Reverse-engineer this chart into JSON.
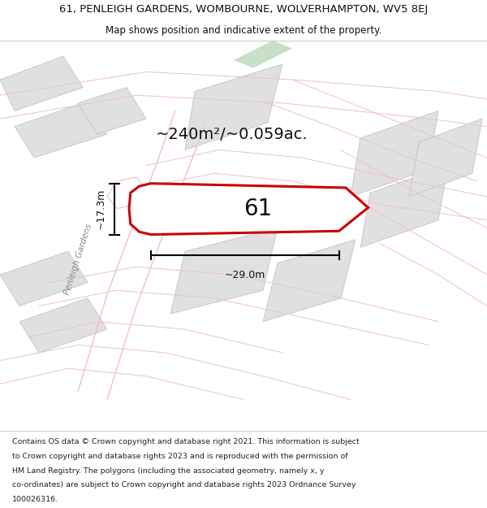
{
  "title_line1": "61, PENLEIGH GARDENS, WOMBOURNE, WOLVERHAMPTON, WV5 8EJ",
  "title_line2": "Map shows position and indicative extent of the property.",
  "footer_lines": [
    "Contains OS data © Crown copyright and database right 2021. This information is subject",
    "to Crown copyright and database rights 2023 and is reproduced with the permission of",
    "HM Land Registry. The polygons (including the associated geometry, namely x, y",
    "co-ordinates) are subject to Crown copyright and database rights 2023 Ordnance Survey",
    "100026316."
  ],
  "plot_number": "61",
  "area_label": "~240m²/~0.059ac.",
  "width_label": "~29.0m",
  "height_label": "~17.3m",
  "road_color": "#f0c0c0",
  "plot_fill": "#ffffff",
  "plot_edge": "#cc0000",
  "building_fill": "#e0e0e0",
  "building_edge": "#bbbbbb",
  "map_bg": "#ffffff",
  "green_fill": "#c8dfc8",
  "road_label_color": "#888888",
  "title_fontsize": 9.5,
  "subtitle_fontsize": 8.5,
  "footer_fontsize": 6.8,
  "area_fontsize": 14,
  "number_fontsize": 20,
  "dim_fontsize": 9
}
